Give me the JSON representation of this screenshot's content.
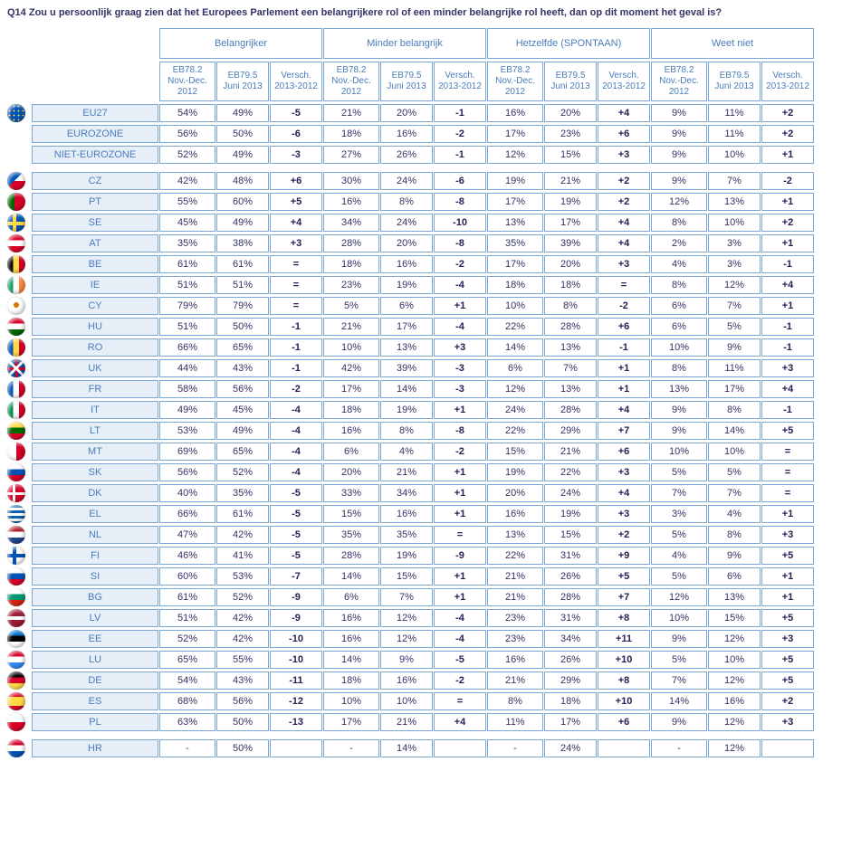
{
  "title": "Q14 Zou u persoonlijk graag zien dat het Europees Parlement een belangrijkere rol of een minder belangrijke rol heeft, dan op dit moment het geval is?",
  "headers": {
    "groups": [
      "Belangrijker",
      "Minder belangrijk",
      "Hetzelfde (SPONTAAN)",
      "Weet niet"
    ],
    "subs": [
      "EB78.2 Nov.-Dec. 2012",
      "EB79.5 Juni 2013",
      "Versch. 2013-2012"
    ]
  },
  "colors": {
    "border": "#7aa8d6",
    "labelBg": "#e6eef8",
    "headerText": "#4a7dbb",
    "bodyText": "#333366"
  },
  "groupsA": [
    {
      "code": "EU27",
      "flag": "eu",
      "v": [
        "54%",
        "49%",
        "-5",
        "21%",
        "20%",
        "-1",
        "16%",
        "20%",
        "+4",
        "9%",
        "11%",
        "+2"
      ]
    },
    {
      "code": "EUROZONE",
      "flag": "",
      "v": [
        "56%",
        "50%",
        "-6",
        "18%",
        "16%",
        "-2",
        "17%",
        "23%",
        "+6",
        "9%",
        "11%",
        "+2"
      ]
    },
    {
      "code": "NIET-EUROZONE",
      "flag": "",
      "v": [
        "52%",
        "49%",
        "-3",
        "27%",
        "26%",
        "-1",
        "12%",
        "15%",
        "+3",
        "9%",
        "10%",
        "+1"
      ]
    }
  ],
  "groupsB": [
    {
      "code": "CZ",
      "flag": "cz",
      "v": [
        "42%",
        "48%",
        "+6",
        "30%",
        "24%",
        "-6",
        "19%",
        "21%",
        "+2",
        "9%",
        "7%",
        "-2"
      ]
    },
    {
      "code": "PT",
      "flag": "pt",
      "v": [
        "55%",
        "60%",
        "+5",
        "16%",
        "8%",
        "-8",
        "17%",
        "19%",
        "+2",
        "12%",
        "13%",
        "+1"
      ]
    },
    {
      "code": "SE",
      "flag": "se",
      "v": [
        "45%",
        "49%",
        "+4",
        "34%",
        "24%",
        "-10",
        "13%",
        "17%",
        "+4",
        "8%",
        "10%",
        "+2"
      ]
    },
    {
      "code": "AT",
      "flag": "at",
      "v": [
        "35%",
        "38%",
        "+3",
        "28%",
        "20%",
        "-8",
        "35%",
        "39%",
        "+4",
        "2%",
        "3%",
        "+1"
      ]
    },
    {
      "code": "BE",
      "flag": "be",
      "v": [
        "61%",
        "61%",
        "=",
        "18%",
        "16%",
        "-2",
        "17%",
        "20%",
        "+3",
        "4%",
        "3%",
        "-1"
      ]
    },
    {
      "code": "IE",
      "flag": "ie",
      "v": [
        "51%",
        "51%",
        "=",
        "23%",
        "19%",
        "-4",
        "18%",
        "18%",
        "=",
        "8%",
        "12%",
        "+4"
      ]
    },
    {
      "code": "CY",
      "flag": "cy",
      "v": [
        "79%",
        "79%",
        "=",
        "5%",
        "6%",
        "+1",
        "10%",
        "8%",
        "-2",
        "6%",
        "7%",
        "+1"
      ]
    },
    {
      "code": "HU",
      "flag": "hu",
      "v": [
        "51%",
        "50%",
        "-1",
        "21%",
        "17%",
        "-4",
        "22%",
        "28%",
        "+6",
        "6%",
        "5%",
        "-1"
      ]
    },
    {
      "code": "RO",
      "flag": "ro",
      "v": [
        "66%",
        "65%",
        "-1",
        "10%",
        "13%",
        "+3",
        "14%",
        "13%",
        "-1",
        "10%",
        "9%",
        "-1"
      ]
    },
    {
      "code": "UK",
      "flag": "uk",
      "v": [
        "44%",
        "43%",
        "-1",
        "42%",
        "39%",
        "-3",
        "6%",
        "7%",
        "+1",
        "8%",
        "11%",
        "+3"
      ]
    },
    {
      "code": "FR",
      "flag": "fr",
      "v": [
        "58%",
        "56%",
        "-2",
        "17%",
        "14%",
        "-3",
        "12%",
        "13%",
        "+1",
        "13%",
        "17%",
        "+4"
      ]
    },
    {
      "code": "IT",
      "flag": "it",
      "v": [
        "49%",
        "45%",
        "-4",
        "18%",
        "19%",
        "+1",
        "24%",
        "28%",
        "+4",
        "9%",
        "8%",
        "-1"
      ]
    },
    {
      "code": "LT",
      "flag": "lt",
      "v": [
        "53%",
        "49%",
        "-4",
        "16%",
        "8%",
        "-8",
        "22%",
        "29%",
        "+7",
        "9%",
        "14%",
        "+5"
      ]
    },
    {
      "code": "MT",
      "flag": "mt",
      "v": [
        "69%",
        "65%",
        "-4",
        "6%",
        "4%",
        "-2",
        "15%",
        "21%",
        "+6",
        "10%",
        "10%",
        "="
      ]
    },
    {
      "code": "SK",
      "flag": "sk",
      "v": [
        "56%",
        "52%",
        "-4",
        "20%",
        "21%",
        "+1",
        "19%",
        "22%",
        "+3",
        "5%",
        "5%",
        "="
      ]
    },
    {
      "code": "DK",
      "flag": "dk",
      "v": [
        "40%",
        "35%",
        "-5",
        "33%",
        "34%",
        "+1",
        "20%",
        "24%",
        "+4",
        "7%",
        "7%",
        "="
      ]
    },
    {
      "code": "EL",
      "flag": "el",
      "v": [
        "66%",
        "61%",
        "-5",
        "15%",
        "16%",
        "+1",
        "16%",
        "19%",
        "+3",
        "3%",
        "4%",
        "+1"
      ]
    },
    {
      "code": "NL",
      "flag": "nl",
      "v": [
        "47%",
        "42%",
        "-5",
        "35%",
        "35%",
        "=",
        "13%",
        "15%",
        "+2",
        "5%",
        "8%",
        "+3"
      ]
    },
    {
      "code": "FI",
      "flag": "fi",
      "v": [
        "46%",
        "41%",
        "-5",
        "28%",
        "19%",
        "-9",
        "22%",
        "31%",
        "+9",
        "4%",
        "9%",
        "+5"
      ]
    },
    {
      "code": "SI",
      "flag": "si",
      "v": [
        "60%",
        "53%",
        "-7",
        "14%",
        "15%",
        "+1",
        "21%",
        "26%",
        "+5",
        "5%",
        "6%",
        "+1"
      ]
    },
    {
      "code": "BG",
      "flag": "bg",
      "v": [
        "61%",
        "52%",
        "-9",
        "6%",
        "7%",
        "+1",
        "21%",
        "28%",
        "+7",
        "12%",
        "13%",
        "+1"
      ]
    },
    {
      "code": "LV",
      "flag": "lv",
      "v": [
        "51%",
        "42%",
        "-9",
        "16%",
        "12%",
        "-4",
        "23%",
        "31%",
        "+8",
        "10%",
        "15%",
        "+5"
      ]
    },
    {
      "code": "EE",
      "flag": "ee",
      "v": [
        "52%",
        "42%",
        "-10",
        "16%",
        "12%",
        "-4",
        "23%",
        "34%",
        "+11",
        "9%",
        "12%",
        "+3"
      ]
    },
    {
      "code": "LU",
      "flag": "lu",
      "v": [
        "65%",
        "55%",
        "-10",
        "14%",
        "9%",
        "-5",
        "16%",
        "26%",
        "+10",
        "5%",
        "10%",
        "+5"
      ]
    },
    {
      "code": "DE",
      "flag": "de",
      "v": [
        "54%",
        "43%",
        "-11",
        "18%",
        "16%",
        "-2",
        "21%",
        "29%",
        "+8",
        "7%",
        "12%",
        "+5"
      ]
    },
    {
      "code": "ES",
      "flag": "es",
      "v": [
        "68%",
        "56%",
        "-12",
        "10%",
        "10%",
        "=",
        "8%",
        "18%",
        "+10",
        "14%",
        "16%",
        "+2"
      ]
    },
    {
      "code": "PL",
      "flag": "pl",
      "v": [
        "63%",
        "50%",
        "-13",
        "17%",
        "21%",
        "+4",
        "11%",
        "17%",
        "+6",
        "9%",
        "12%",
        "+3"
      ]
    }
  ],
  "groupsC": [
    {
      "code": "HR",
      "flag": "hr",
      "v": [
        "-",
        "50%",
        "",
        "-",
        "14%",
        "",
        "-",
        "24%",
        "",
        "-",
        "12%",
        ""
      ]
    }
  ],
  "flagDefs": {
    "eu": "background:#0052b4;background-image:radial-gradient(circle,#ffda44 1px,transparent 1px);background-size:5px 5px;",
    "cz": "background:linear-gradient(135deg,#0052b4 45%,transparent 45%),linear-gradient(#fff 50%,#d80027 50%);",
    "pt": "background:linear-gradient(90deg,#006600 40%,#d80027 40%);",
    "se": "background:#0052b4;background-image:linear-gradient(#ffda44,#ffda44),linear-gradient(#ffda44,#ffda44);background-size:100% 4px,4px 100%;background-position:0 55%,35% 0;background-repeat:no-repeat;",
    "at": "background:linear-gradient(#d80027 33%,#fff 33% 66%,#d80027 66%);",
    "be": "background:linear-gradient(90deg,#000 33%,#ffda44 33% 66%,#d80027 66%);",
    "ie": "background:linear-gradient(90deg,#169b62 33%,#fff 33% 66%,#ff883e 66%);",
    "cy": "background:#fff;background-image:radial-gradient(circle at 50% 45%,#d57800 3px,transparent 3px);",
    "hu": "background:linear-gradient(#d80027 33%,#fff 33% 66%,#006600 66%);",
    "ro": "background:linear-gradient(90deg,#0052b4 33%,#ffda44 33% 66%,#d80027 66%);",
    "uk": "background:#0052b4;background-image:linear-gradient(45deg,transparent 45%,#fff 45% 55%,transparent 55%),linear-gradient(-45deg,transparent 45%,#fff 45% 55%,transparent 55%),linear-gradient(#d80027,#d80027),linear-gradient(#d80027,#d80027);background-size:100% 100%,100% 100%,100% 3px,3px 100%;background-position:0 0,0 0,0 50%,50% 0;background-repeat:no-repeat;",
    "fr": "background:linear-gradient(90deg,#0052b4 33%,#fff 33% 66%,#d80027 66%);",
    "it": "background:linear-gradient(90deg,#008c45 33%,#fff 33% 66%,#d80027 66%);",
    "lt": "background:linear-gradient(#ffda44 33%,#006600 33% 66%,#d80027 66%);",
    "mt": "background:linear-gradient(90deg,#fff 50%,#d80027 50%);",
    "sk": "background:linear-gradient(#fff 33%,#0052b4 33% 66%,#d80027 66%);",
    "dk": "background:#d80027;background-image:linear-gradient(#fff,#fff),linear-gradient(#fff,#fff);background-size:100% 3px,3px 100%;background-position:0 50%,38% 0;background-repeat:no-repeat;",
    "el": "background:repeating-linear-gradient(#0d5eaf 0 3px,#fff 3px 6px);",
    "nl": "background:linear-gradient(#ae1c28 33%,#fff 33% 66%,#21468b 66%);",
    "fi": "background:#fff;background-image:linear-gradient(#0052b4,#0052b4),linear-gradient(#0052b4,#0052b4);background-size:100% 4px,4px 100%;background-position:0 50%,38% 0;background-repeat:no-repeat;",
    "si": "background:linear-gradient(#fff 33%,#0052b4 33% 66%,#d80027 66%);",
    "bg": "background:linear-gradient(#fff 33%,#00966e 33% 66%,#d62612 66%);",
    "lv": "background:linear-gradient(#9e1b34 40%,#fff 40% 60%,#9e1b34 60%);",
    "ee": "background:linear-gradient(#0072ce 33%,#000 33% 66%,#fff 66%);",
    "lu": "background:linear-gradient(#d80027 33%,#fff 33% 66%,#338af3 66%);",
    "de": "background:linear-gradient(#000 33%,#d80027 33% 66%,#ffda44 66%);",
    "es": "background:linear-gradient(#d80027 25%,#ffda44 25% 75%,#d80027 75%);",
    "pl": "background:linear-gradient(#fff 50%,#d80027 50%);",
    "hr": "background:linear-gradient(#d80027 33%,#fff 33% 66%,#0052b4 66%);background-image:linear-gradient(#d80027 33%,#fff 33% 66%,#0052b4 66%),repeating-conic-gradient(#d80027 0 25%,#fff 0 50%);background-size:100% 100%,6px 6px;background-position:0 0,50% 50%;"
  }
}
